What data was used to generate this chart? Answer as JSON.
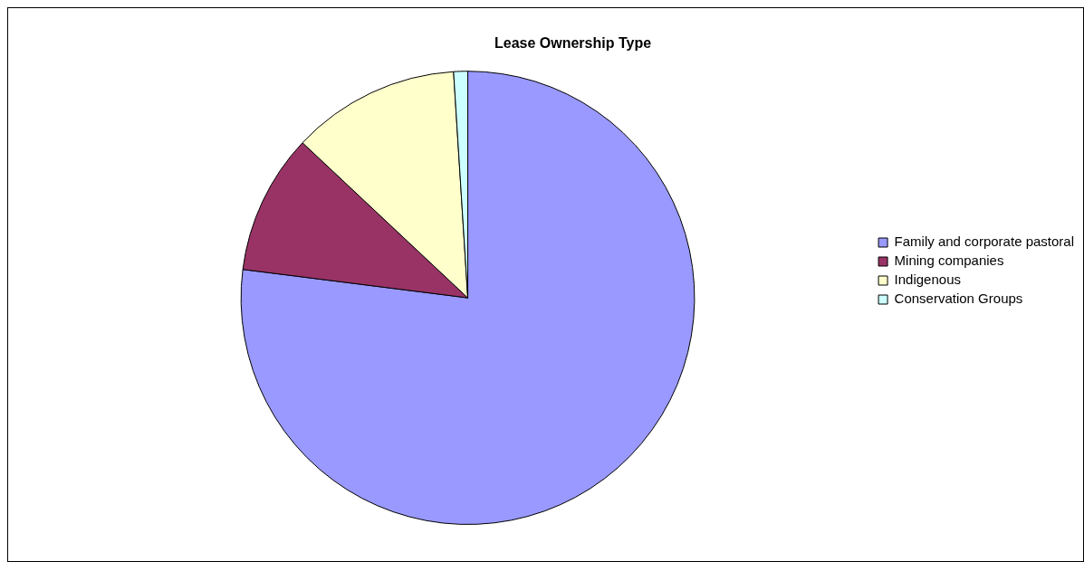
{
  "chart_data": {
    "type": "pie",
    "title": "Lease Ownership Type",
    "categories": [
      "Family and corporate pastoral",
      "Mining companies",
      "Indigenous",
      "Conservation Groups"
    ],
    "values": [
      77,
      10,
      12,
      1
    ],
    "colors": [
      "#9999ff",
      "#993366",
      "#ffffcc",
      "#ccffff"
    ],
    "legend": "right"
  }
}
